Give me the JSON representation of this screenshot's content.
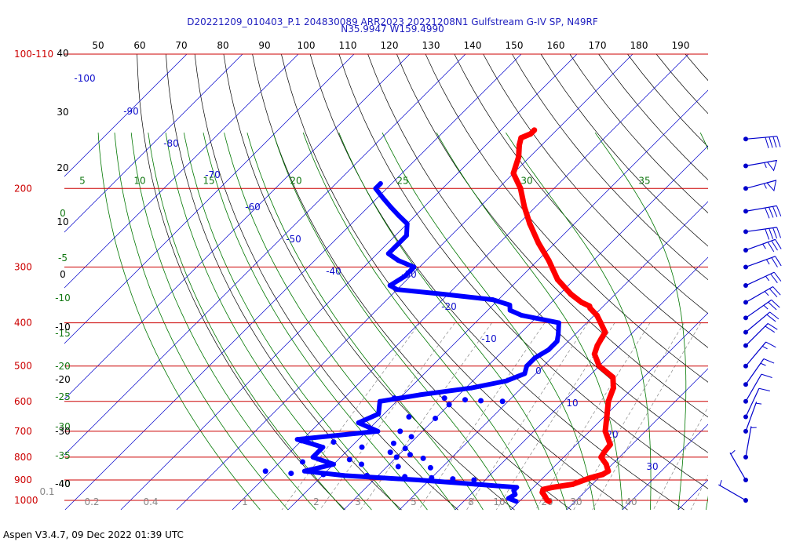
{
  "header": {
    "title_line1": "D20221209_010403_P.1 204830089 ARR2023  20221208N1 Gulfstream G-IV SP, N49RF",
    "title_line2": "N35.9947 W159.4990"
  },
  "footer": {
    "version_text": "Aspen V3.4.7, 09 Dec 2022  01:39 UTC"
  },
  "colors": {
    "temperature": "#ff0000",
    "dewpoint": "#0000ff",
    "isobar": "#cc0000",
    "isotherm": "#0000cc",
    "mixing_ratio": "#888888",
    "moist_adiabat": "#007700",
    "dry_adiabat": "#000000",
    "wind": "#0000cc"
  },
  "chart_data": {
    "type": "skew-t",
    "title": "D20221209_010403_P.1 204830089 ARR2023  20221208N1 Gulfstream G-IV SP, N49RF",
    "subtitle": "N35.9947 W159.4990",
    "pressure_levels": [
      100,
      200,
      300,
      400,
      500,
      600,
      700,
      800,
      900,
      1000
    ],
    "pressure_labels": [
      "100-110",
      "200",
      "300",
      "400",
      "500",
      "600",
      "700",
      "800",
      "900",
      "1000"
    ],
    "p_range": [
      100,
      1050
    ],
    "isotherm_labels": [
      "-100",
      "-90",
      "-80",
      "-70",
      "-60",
      "-50",
      "-40",
      "-30",
      "-20",
      "-10",
      "0",
      "10",
      "20",
      "30"
    ],
    "isotherm_label_values": [
      -100,
      -90,
      -80,
      -70,
      -60,
      -50,
      -40,
      -30,
      -20,
      -10,
      0,
      10,
      20,
      30
    ],
    "top_temperature_labels": [
      "50",
      "60",
      "70",
      "80",
      "90",
      "100",
      "110",
      "120",
      "130",
      "140",
      "150",
      "160",
      "170",
      "180",
      "190"
    ],
    "moist_adiabat_labels": [
      "5",
      "10",
      "15",
      "20",
      "25",
      "30",
      "35"
    ],
    "left_moist_labels": [
      "0",
      "-5",
      "-10",
      "-15",
      "-20",
      "-25",
      "-30",
      "-35",
      "-40"
    ],
    "left_black_labels": [
      "40",
      "30",
      "20",
      "10",
      "0",
      "-10",
      "-20",
      "-30",
      "-40"
    ],
    "mixing_ratio_labels": [
      "0.1",
      "0.2",
      "0.4",
      "1",
      "2",
      "3",
      "5",
      "8",
      "10",
      "20",
      "30",
      "40"
    ],
    "temperature_profile": [
      {
        "p": 148,
        "t": -64
      },
      {
        "p": 151,
        "t": -64
      },
      {
        "p": 154,
        "t": -65
      },
      {
        "p": 160,
        "t": -64
      },
      {
        "p": 170,
        "t": -62
      },
      {
        "p": 185,
        "t": -60
      },
      {
        "p": 200,
        "t": -56
      },
      {
        "p": 220,
        "t": -52
      },
      {
        "p": 240,
        "t": -48
      },
      {
        "p": 265,
        "t": -43
      },
      {
        "p": 290,
        "t": -38
      },
      {
        "p": 320,
        "t": -33
      },
      {
        "p": 345,
        "t": -28
      },
      {
        "p": 360,
        "t": -24.6
      },
      {
        "p": 367,
        "t": -22.5
      },
      {
        "p": 371,
        "t": -22
      },
      {
        "p": 385,
        "t": -19.5
      },
      {
        "p": 400,
        "t": -17.5
      },
      {
        "p": 420,
        "t": -15
      },
      {
        "p": 435,
        "t": -14.5
      },
      {
        "p": 450,
        "t": -14
      },
      {
        "p": 470,
        "t": -13
      },
      {
        "p": 500,
        "t": -10
      },
      {
        "p": 530,
        "t": -5.5
      },
      {
        "p": 560,
        "t": -3.5
      },
      {
        "p": 600,
        "t": -2
      },
      {
        "p": 650,
        "t": 0.5
      },
      {
        "p": 700,
        "t": 2.8
      },
      {
        "p": 750,
        "t": 6.1
      },
      {
        "p": 775,
        "t": 6.3
      },
      {
        "p": 800,
        "t": 6.7
      },
      {
        "p": 830,
        "t": 8.9
      },
      {
        "p": 860,
        "t": 10.5
      },
      {
        "p": 875,
        "t": 10.1
      },
      {
        "p": 890,
        "t": 8.5
      },
      {
        "p": 920,
        "t": 6.5
      },
      {
        "p": 935,
        "t": 3.4
      },
      {
        "p": 945,
        "t": 2.1
      },
      {
        "p": 960,
        "t": 2.5
      },
      {
        "p": 980,
        "t": 3.7
      },
      {
        "p": 1000,
        "t": 4.8
      },
      {
        "p": 1005,
        "t": 5.3
      }
    ],
    "dewpoint_profile": [
      {
        "p": 195,
        "t": -82
      },
      {
        "p": 200,
        "t": -82
      },
      {
        "p": 210,
        "t": -79
      },
      {
        "p": 220,
        "t": -76
      },
      {
        "p": 230,
        "t": -73
      },
      {
        "p": 240,
        "t": -70
      },
      {
        "p": 255,
        "t": -68
      },
      {
        "p": 270,
        "t": -68
      },
      {
        "p": 280,
        "t": -68
      },
      {
        "p": 290,
        "t": -65
      },
      {
        "p": 300,
        "t": -61
      },
      {
        "p": 315,
        "t": -61
      },
      {
        "p": 330,
        "t": -62
      },
      {
        "p": 337,
        "t": -60
      },
      {
        "p": 345,
        "t": -51
      },
      {
        "p": 355,
        "t": -41
      },
      {
        "p": 365,
        "t": -37
      },
      {
        "p": 375,
        "t": -36
      },
      {
        "p": 385,
        "t": -33
      },
      {
        "p": 400,
        "t": -25
      },
      {
        "p": 425,
        "t": -23
      },
      {
        "p": 440,
        "t": -22
      },
      {
        "p": 460,
        "t": -22
      },
      {
        "p": 480,
        "t": -23
      },
      {
        "p": 500,
        "t": -23
      },
      {
        "p": 520,
        "t": -22
      },
      {
        "p": 540,
        "t": -24
      },
      {
        "p": 560,
        "t": -29
      },
      {
        "p": 580,
        "t": -37
      },
      {
        "p": 600,
        "t": -43
      },
      {
        "p": 640,
        "t": -41
      },
      {
        "p": 670,
        "t": -43
      },
      {
        "p": 700,
        "t": -38
      },
      {
        "p": 730,
        "t": -51
      },
      {
        "p": 760,
        "t": -45
      },
      {
        "p": 800,
        "t": -45
      },
      {
        "p": 830,
        "t": -40
      },
      {
        "p": 860,
        "t": -44
      },
      {
        "p": 880,
        "t": -36
      },
      {
        "p": 900,
        "t": -22
      },
      {
        "p": 920,
        "t": -11
      },
      {
        "p": 935,
        "t": -3
      },
      {
        "p": 950,
        "t": -3
      },
      {
        "p": 970,
        "t": -2
      },
      {
        "p": 990,
        "t": -2.5
      },
      {
        "p": 1005,
        "t": -0.6
      }
    ],
    "dewpoint_scatter": [
      {
        "p": 590,
        "t": -41
      },
      {
        "p": 590,
        "t": -32
      },
      {
        "p": 595,
        "t": -28
      },
      {
        "p": 598,
        "t": -25
      },
      {
        "p": 600,
        "t": -21
      },
      {
        "p": 610,
        "t": -30
      },
      {
        "p": 650,
        "t": -35
      },
      {
        "p": 655,
        "t": -30
      },
      {
        "p": 700,
        "t": -34
      },
      {
        "p": 720,
        "t": -31
      },
      {
        "p": 735,
        "t": -50
      },
      {
        "p": 740,
        "t": -44
      },
      {
        "p": 745,
        "t": -33
      },
      {
        "p": 760,
        "t": -38
      },
      {
        "p": 765,
        "t": -30
      },
      {
        "p": 780,
        "t": -32
      },
      {
        "p": 790,
        "t": -28
      },
      {
        "p": 800,
        "t": -30
      },
      {
        "p": 805,
        "t": -25
      },
      {
        "p": 810,
        "t": -38
      },
      {
        "p": 820,
        "t": -46
      },
      {
        "p": 830,
        "t": -35
      },
      {
        "p": 840,
        "t": -28
      },
      {
        "p": 845,
        "t": -22
      },
      {
        "p": 860,
        "t": -51
      },
      {
        "p": 870,
        "t": -46
      },
      {
        "p": 875,
        "t": -40
      },
      {
        "p": 880,
        "t": -32
      },
      {
        "p": 885,
        "t": -25
      },
      {
        "p": 890,
        "t": -20
      },
      {
        "p": 895,
        "t": -16
      },
      {
        "p": 900,
        "t": -12
      }
    ],
    "wind_barbs": [
      {
        "p": 155,
        "dir": 265,
        "speed": 40
      },
      {
        "p": 178,
        "dir": 260,
        "speed": 55
      },
      {
        "p": 200,
        "dir": 255,
        "speed": 55
      },
      {
        "p": 225,
        "dir": 260,
        "speed": 40
      },
      {
        "p": 250,
        "dir": 262,
        "speed": 40
      },
      {
        "p": 275,
        "dir": 250,
        "speed": 35
      },
      {
        "p": 300,
        "dir": 250,
        "speed": 25
      },
      {
        "p": 330,
        "dir": 245,
        "speed": 25
      },
      {
        "p": 360,
        "dir": 240,
        "speed": 25
      },
      {
        "p": 390,
        "dir": 235,
        "speed": 25
      },
      {
        "p": 420,
        "dir": 230,
        "speed": 20
      },
      {
        "p": 450,
        "dir": 225,
        "speed": 20
      },
      {
        "p": 500,
        "dir": 220,
        "speed": 15
      },
      {
        "p": 550,
        "dir": 215,
        "speed": 15
      },
      {
        "p": 600,
        "dir": 210,
        "speed": 10
      },
      {
        "p": 650,
        "dir": 205,
        "speed": 10
      },
      {
        "p": 700,
        "dir": 200,
        "speed": 5
      },
      {
        "p": 800,
        "dir": 190,
        "speed": 5
      },
      {
        "p": 900,
        "dir": 150,
        "speed": 5
      },
      {
        "p": 1000,
        "dir": 120,
        "speed": 5
      }
    ]
  }
}
